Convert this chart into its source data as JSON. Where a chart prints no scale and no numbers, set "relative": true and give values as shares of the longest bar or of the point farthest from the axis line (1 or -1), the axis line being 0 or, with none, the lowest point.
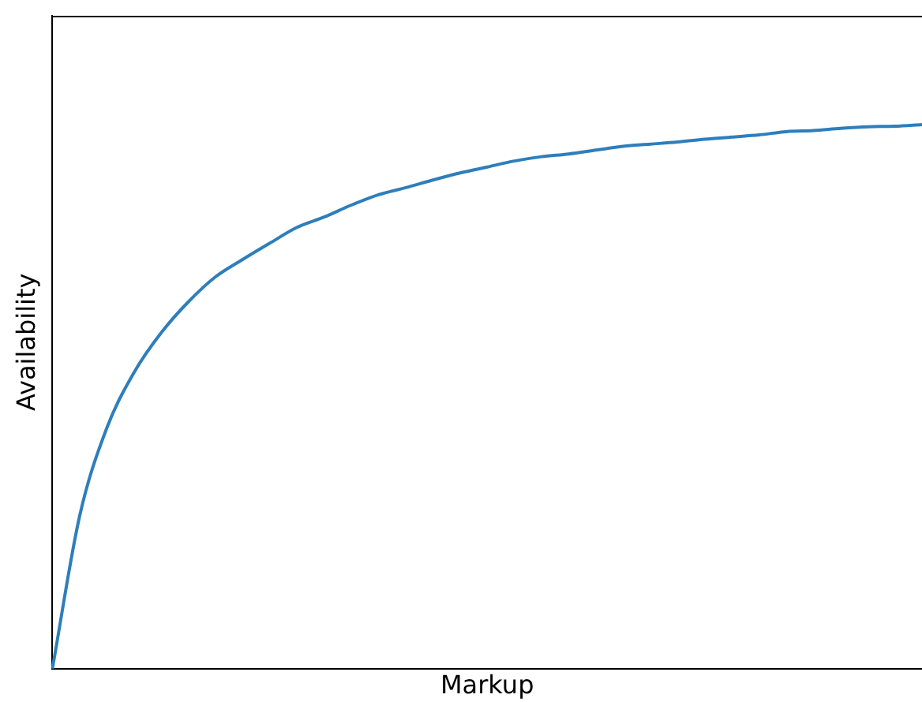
{
  "chart_data": {
    "type": "line",
    "relative": true,
    "xlabel": "Markup",
    "ylabel": "Availability",
    "categories": [
      null,
      null,
      null,
      null,
      null,
      null,
      null,
      null,
      null,
      null,
      null,
      null,
      null,
      null,
      null,
      null,
      null,
      null,
      null,
      null,
      null,
      null,
      null,
      null,
      null,
      null,
      null,
      null,
      null,
      null,
      null,
      null,
      null
    ],
    "series": [
      {
        "color": "#2e7ebc",
        "values": [
          0,
          0.28,
          0.442,
          0.544,
          0.617,
          0.674,
          0.72,
          0.752,
          0.782,
          0.811,
          0.83,
          0.852,
          0.871,
          0.884,
          0.898,
          0.911,
          0.922,
          0.933,
          0.941,
          0.946,
          0.953,
          0.96,
          0.964,
          0.968,
          0.973,
          0.977,
          0.981,
          0.987,
          0.989,
          0.993,
          0.996,
          0.997,
          1
        ]
      }
    ],
    "grid": false,
    "legend": false,
    "marker": "none",
    "line_style": "solid",
    "tick_labels": false
  }
}
